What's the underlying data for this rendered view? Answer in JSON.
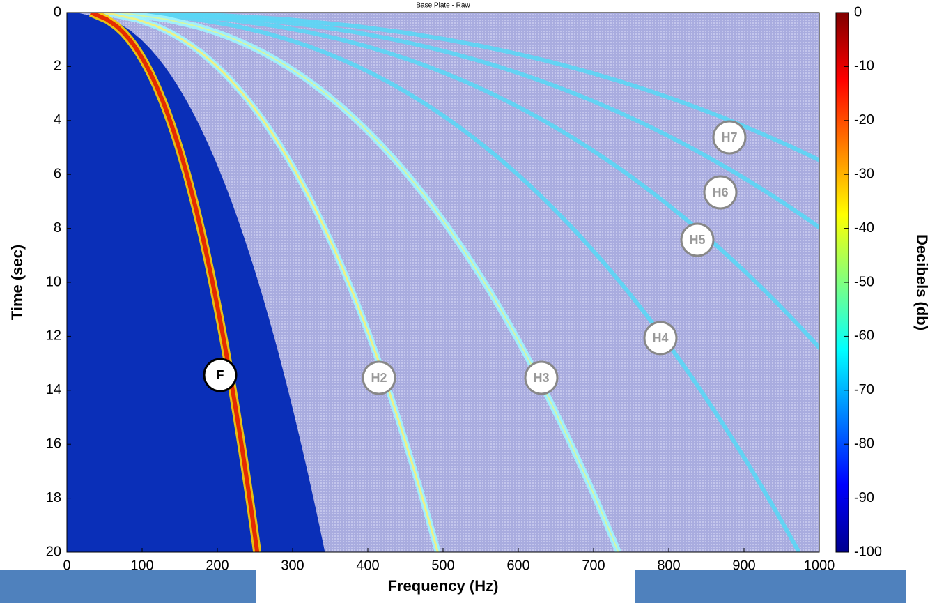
{
  "chart_data": {
    "type": "spectrogram",
    "title": "Base Plate - Raw",
    "x_label": "Frequency (Hz)",
    "y_label": "Time (sec)",
    "colorbar_label": "Decibels (db)",
    "xlim": [
      0,
      1000
    ],
    "xticks": [
      0,
      100,
      200,
      300,
      400,
      500,
      600,
      700,
      800,
      900,
      1000
    ],
    "ylim": [
      0,
      20
    ],
    "yticks": [
      0,
      2,
      4,
      6,
      8,
      10,
      12,
      14,
      16,
      18,
      20
    ],
    "y_inverted": true,
    "clim": [
      -100,
      0
    ],
    "cticks": [
      0,
      -10,
      -20,
      -30,
      -40,
      -50,
      -60,
      -70,
      -80,
      -90,
      -100
    ],
    "colormap": "jet",
    "annotations": [
      "F",
      "H2",
      "H3",
      "H4",
      "H5",
      "H6",
      "H7"
    ]
  }
}
